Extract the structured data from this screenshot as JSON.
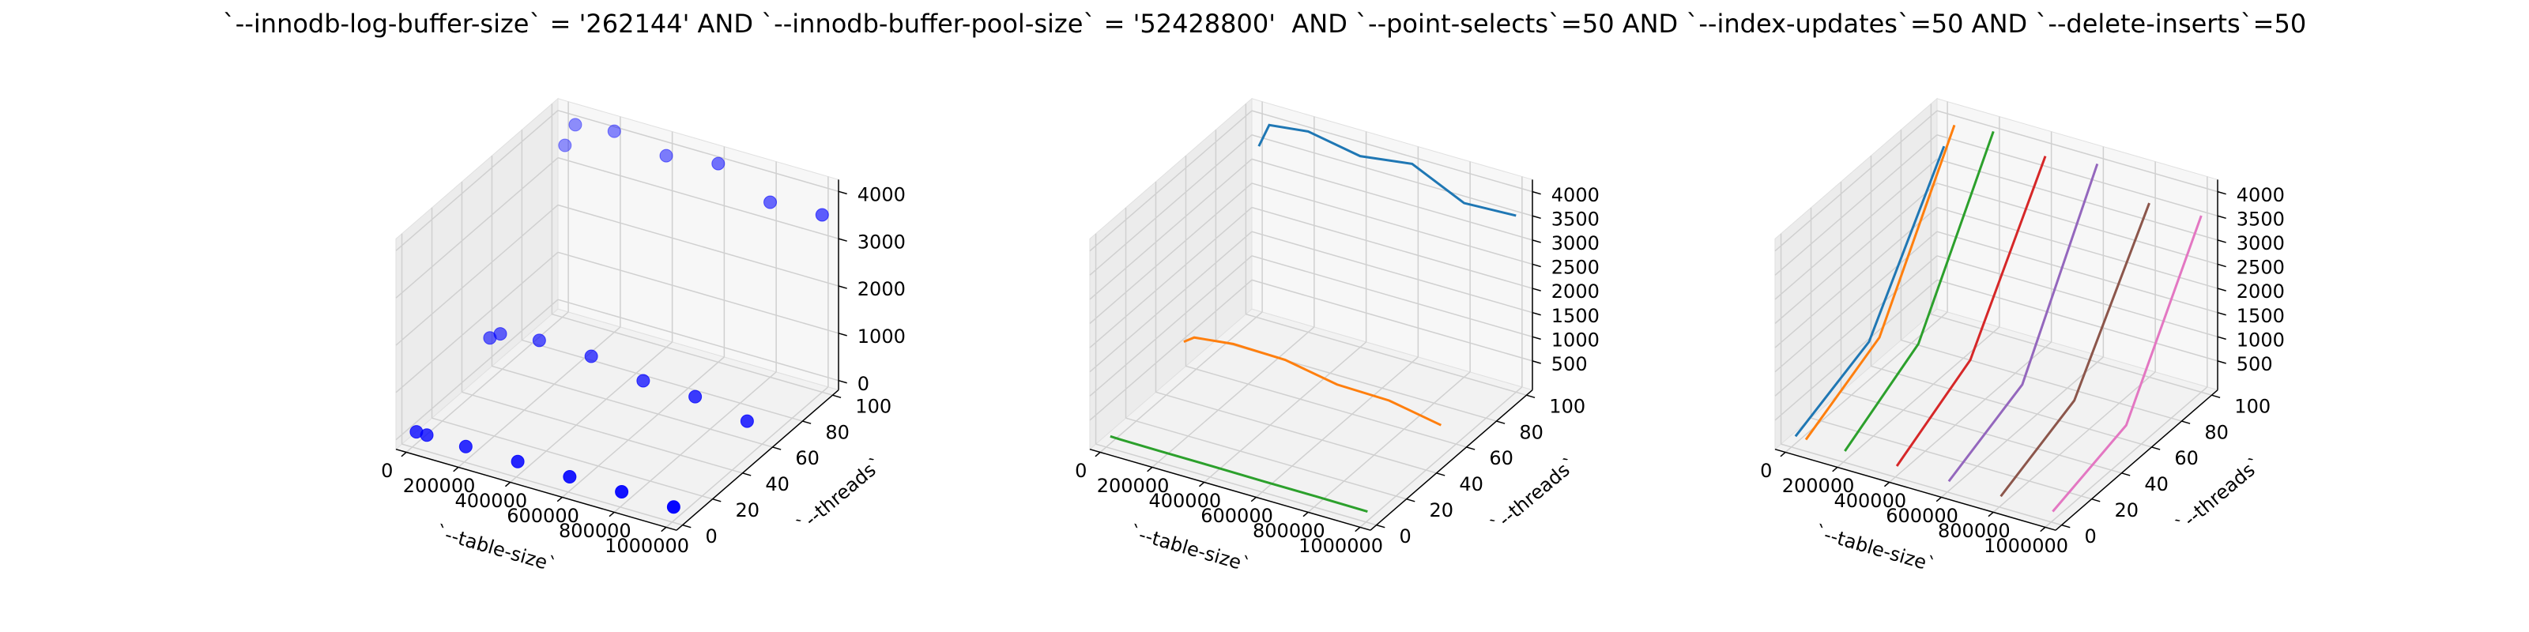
{
  "title": "`--innodb-log-buffer-size` = '262144' AND `--innodb-buffer-pool-size` = '52428800'  AND `--point-selects`=50 AND `--index-updates`=50 AND `--delete-inserts`=50",
  "chart_data": [
    {
      "type": "scatter3d",
      "xlabel": "`--table-size`",
      "ylabel": "`--threads`",
      "color": "#0000ff",
      "x": [
        10000,
        50000,
        200000,
        400000,
        600000,
        800000,
        1000000,
        10000,
        50000,
        200000,
        400000,
        600000,
        800000,
        1000000,
        10000,
        50000,
        200000,
        400000,
        600000,
        800000,
        1000000
      ],
      "y": [
        1,
        1,
        1,
        1,
        1,
        1,
        1,
        50,
        50,
        50,
        50,
        50,
        50,
        50,
        100,
        100,
        100,
        100,
        100,
        100,
        100
      ],
      "z": [
        110,
        105,
        100,
        100,
        95,
        95,
        90,
        750,
        900,
        1000,
        980,
        780,
        760,
        560,
        3450,
        3950,
        4050,
        3850,
        4000,
        3500,
        3550
      ],
      "xlim": [
        -40000,
        1040000
      ],
      "ylim": [
        -4,
        104
      ],
      "zlim": [
        -200,
        4250
      ],
      "xticks": [
        0,
        200000,
        400000,
        600000,
        800000,
        1000000
      ],
      "yticks": [
        0,
        20,
        40,
        60,
        80,
        100
      ],
      "zticks": [
        0,
        1000,
        2000,
        3000,
        4000
      ]
    },
    {
      "type": "line3d",
      "xlabel": "`--table-size`",
      "ylabel": "`--threads`",
      "x": [
        10000,
        50000,
        200000,
        400000,
        600000,
        800000,
        1000000
      ],
      "series": [
        {
          "y": 100,
          "color": "#1f77b4",
          "values": [
            3450,
            3950,
            4050,
            3850,
            4000,
            3500,
            3550
          ]
        },
        {
          "y": 50,
          "color": "#ff7f0e",
          "values": [
            750,
            900,
            1000,
            980,
            780,
            760,
            560
          ]
        },
        {
          "y": 1,
          "color": "#2ca02c",
          "values": [
            110,
            105,
            100,
            100,
            95,
            95,
            90
          ]
        }
      ],
      "xlim": [
        -40000,
        1040000
      ],
      "ylim": [
        -4,
        104
      ],
      "zlim": [
        -100,
        4250
      ],
      "xticks": [
        0,
        200000,
        400000,
        600000,
        800000,
        1000000
      ],
      "yticks": [
        0,
        20,
        40,
        60,
        80,
        100
      ],
      "zticks": [
        500,
        1000,
        1500,
        2000,
        2500,
        3000,
        3500,
        4000
      ]
    },
    {
      "type": "line3d-y",
      "xlabel": "`--table-size`",
      "ylabel": "`--threads`",
      "y": [
        1,
        50,
        100
      ],
      "series": [
        {
          "x": 10000,
          "color": "#1f77b4",
          "values": [
            110,
            750,
            3450
          ]
        },
        {
          "x": 50000,
          "color": "#ff7f0e",
          "values": [
            105,
            900,
            3950
          ]
        },
        {
          "x": 200000,
          "color": "#2ca02c",
          "values": [
            100,
            1000,
            4050
          ]
        },
        {
          "x": 400000,
          "color": "#d62728",
          "values": [
            100,
            980,
            3850
          ]
        },
        {
          "x": 600000,
          "color": "#9467bd",
          "values": [
            95,
            780,
            4000
          ]
        },
        {
          "x": 800000,
          "color": "#8c564b",
          "values": [
            95,
            760,
            3500
          ]
        },
        {
          "x": 1000000,
          "color": "#e377c2",
          "values": [
            90,
            560,
            3550
          ]
        }
      ],
      "xlim": [
        -40000,
        1040000
      ],
      "ylim": [
        -4,
        104
      ],
      "zlim": [
        -100,
        4250
      ],
      "xticks": [
        0,
        200000,
        400000,
        600000,
        800000,
        1000000
      ],
      "yticks": [
        0,
        20,
        40,
        60,
        80,
        100
      ],
      "zticks": [
        500,
        1000,
        1500,
        2000,
        2500,
        3000,
        3500,
        4000
      ]
    }
  ]
}
